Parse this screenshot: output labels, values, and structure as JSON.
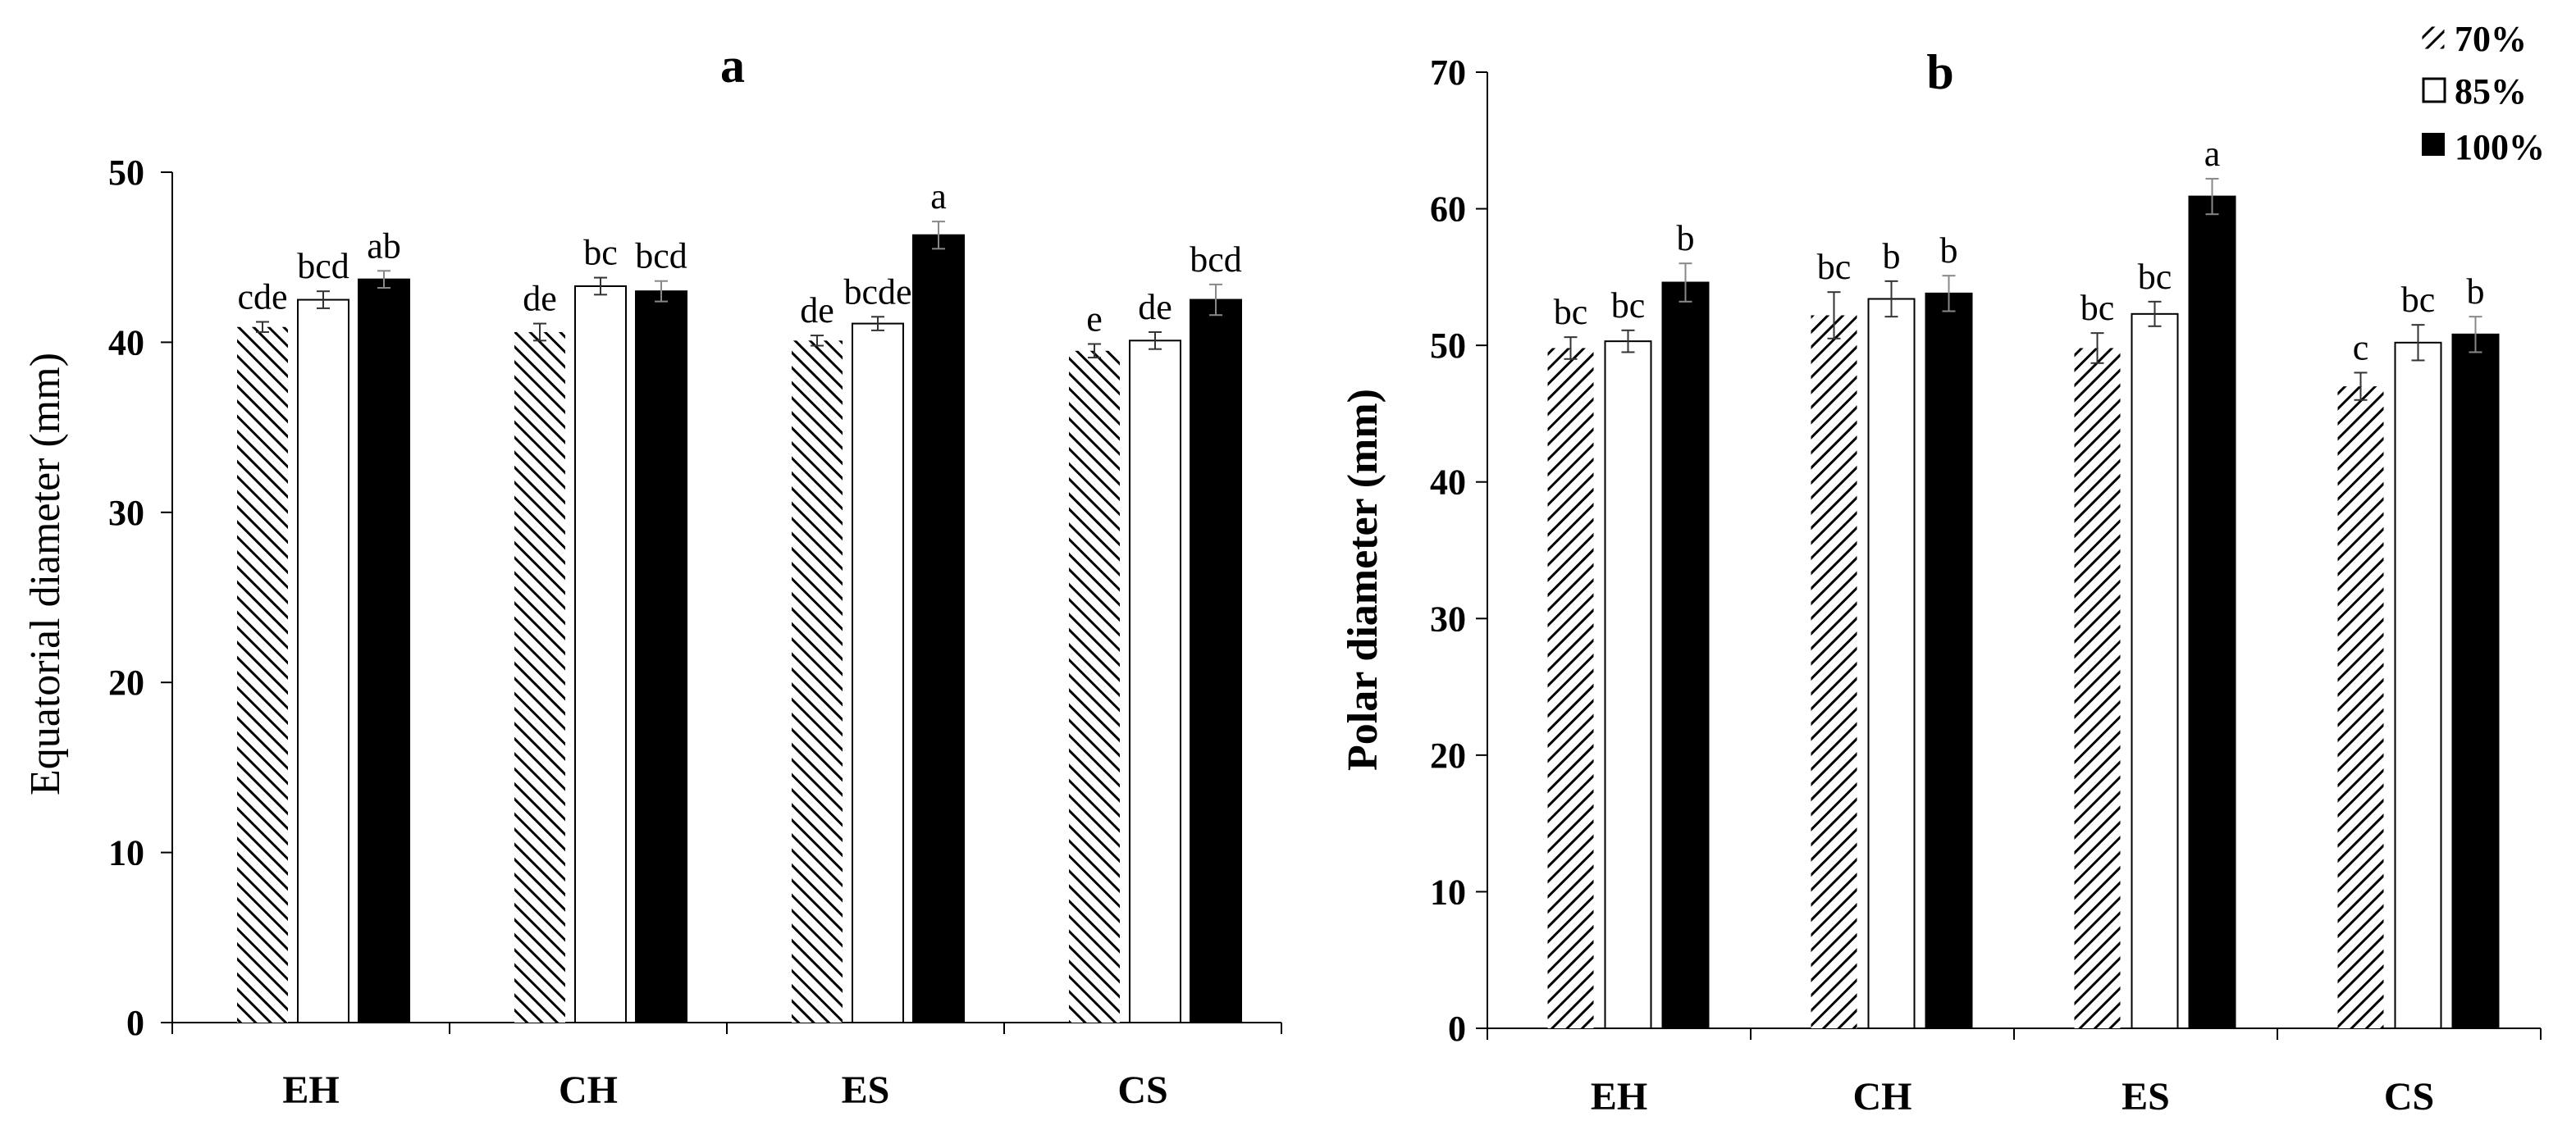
{
  "chart_data": [
    {
      "type": "bar",
      "title": "a",
      "xlabel": "",
      "ylabel": "Equatorial diameter (mm)",
      "ylim": [
        0,
        50
      ],
      "yticks": [
        0,
        10,
        20,
        30,
        40,
        50
      ],
      "grid": false,
      "categories": [
        "EH",
        "CH",
        "ES",
        "CS"
      ],
      "series": [
        {
          "name": "70%",
          "values": [
            40.9,
            40.6,
            40.1,
            39.5
          ],
          "errors": [
            0.3,
            0.5,
            0.3,
            0.4
          ],
          "labels": [
            "cde",
            "de",
            "de",
            "e"
          ]
        },
        {
          "name": "85%",
          "values": [
            42.5,
            43.3,
            41.1,
            40.1
          ],
          "errors": [
            0.5,
            0.5,
            0.4,
            0.5
          ],
          "labels": [
            "bcd",
            "bc",
            "bcde",
            "de"
          ]
        },
        {
          "name": "100%",
          "values": [
            43.7,
            43.0,
            46.3,
            42.5
          ],
          "errors": [
            0.5,
            0.6,
            0.8,
            0.9
          ],
          "labels": [
            "ab",
            "bcd",
            "a",
            "bcd"
          ]
        }
      ]
    },
    {
      "type": "bar",
      "title": "b",
      "xlabel": "",
      "ylabel": "Polar diameter (mm)",
      "ylim": [
        0,
        70
      ],
      "yticks": [
        0,
        10,
        20,
        30,
        40,
        50,
        60,
        70
      ],
      "grid": false,
      "legend_position": "top-right",
      "categories": [
        "EH",
        "CH",
        "ES",
        "CS"
      ],
      "series": [
        {
          "name": "70%",
          "values": [
            49.8,
            52.2,
            49.8,
            47.0
          ],
          "errors": [
            0.8,
            1.7,
            1.1,
            1.0
          ],
          "labels": [
            "bc",
            "bc",
            "bc",
            "c"
          ]
        },
        {
          "name": "85%",
          "values": [
            50.3,
            53.4,
            52.3,
            50.2
          ],
          "errors": [
            0.8,
            1.3,
            0.9,
            1.3
          ],
          "labels": [
            "bc",
            "b",
            "bc",
            "bc"
          ]
        },
        {
          "name": "100%",
          "values": [
            54.6,
            53.8,
            60.9,
            50.8
          ],
          "errors": [
            1.4,
            1.3,
            1.3,
            1.3
          ],
          "labels": [
            "b",
            "b",
            "a",
            "b"
          ]
        }
      ]
    }
  ]
}
